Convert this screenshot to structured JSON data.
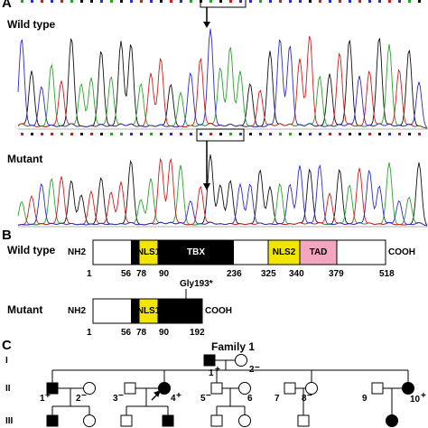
{
  "panelA": {
    "letter": "A",
    "wild_label": "Wild type",
    "mutant_label": "Mutant",
    "trace_colors": {
      "A": "#2aa32a",
      "C": "#2c2cc8",
      "G": "#111111",
      "T": "#d21c1c"
    }
  },
  "panelB": {
    "letter": "B",
    "wild_label": "Wild type",
    "mutant_label": "Mutant",
    "nh2": "NH2",
    "cooh": "COOH",
    "wild_domains": {
      "nls1": "NLS1",
      "tbx": "TBX",
      "nls2": "NLS2",
      "tad": "TAD"
    },
    "wild_positions": [
      "1",
      "56",
      "78",
      "90",
      "236",
      "325",
      "340",
      "379",
      "518"
    ],
    "mutant_domains": {
      "nls1": "NLS1"
    },
    "mutant_positions": [
      "1",
      "56",
      "78",
      "90",
      "192"
    ],
    "mutation_label": "Gly193*",
    "colors": {
      "nls": "#f2e600",
      "tbx": "#000000",
      "tad": "#f4a6c0"
    }
  },
  "panelC": {
    "letter": "C",
    "family_label": "Family 1",
    "generations": [
      "I",
      "II",
      "III"
    ],
    "gen1": [
      {
        "num": "1",
        "sign": "+"
      },
      {
        "num": "2",
        "sign": "−"
      }
    ],
    "gen2": [
      {
        "num": "1",
        "sign": "+"
      },
      {
        "num": "2",
        "sign": "−"
      },
      {
        "num": "3",
        "sign": "−"
      },
      {
        "num": "4",
        "sign": "+"
      },
      {
        "num": "5",
        "sign": "−"
      },
      {
        "num": "6",
        "sign": ""
      },
      {
        "num": "7",
        "sign": ""
      },
      {
        "num": "8",
        "sign": "−"
      },
      {
        "num": "9",
        "sign": ""
      },
      {
        "num": "10",
        "sign": "+"
      }
    ]
  }
}
